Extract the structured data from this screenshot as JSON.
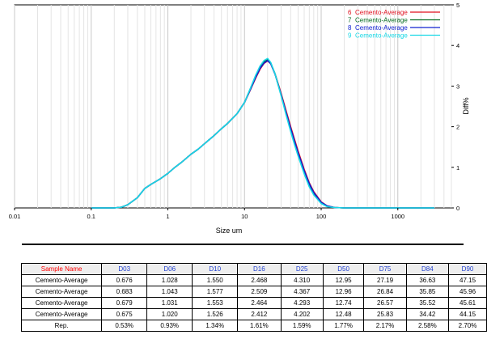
{
  "chart_data": {
    "type": "line",
    "xlabel": "Size um",
    "ylabel": "Diff%",
    "x_scale": "log",
    "xlim": [
      0.01,
      5000
    ],
    "ylim": [
      0,
      5
    ],
    "x_ticks": [
      "0.01",
      "0.1",
      "1",
      "10",
      "100",
      "1000"
    ],
    "x_tick_values": [
      0.01,
      0.1,
      1,
      10,
      100,
      1000
    ],
    "y_ticks": [
      "0",
      "1",
      "2",
      "3",
      "4",
      "5"
    ],
    "y_tick_values": [
      0,
      1,
      2,
      3,
      4,
      5
    ],
    "grid": true,
    "legend_position": "top-right",
    "x": [
      0.1,
      0.2,
      0.25,
      0.3,
      0.4,
      0.5,
      0.6,
      0.8,
      1.0,
      1.2,
      1.5,
      2,
      2.5,
      3,
      4,
      5,
      6,
      8,
      10,
      12,
      14,
      16,
      18,
      20,
      22,
      25,
      30,
      35,
      40,
      45,
      50,
      60,
      70,
      80,
      100,
      120,
      150,
      200,
      300,
      3000
    ],
    "series": [
      {
        "name": "6",
        "label": "Cemento-Average",
        "color": "#e0101f",
        "values": [
          0,
          0,
          0.02,
          0.08,
          0.25,
          0.48,
          0.58,
          0.72,
          0.85,
          0.98,
          1.12,
          1.32,
          1.45,
          1.58,
          1.78,
          1.95,
          2.08,
          2.32,
          2.6,
          2.92,
          3.2,
          3.42,
          3.56,
          3.62,
          3.55,
          3.3,
          2.82,
          2.38,
          2.0,
          1.68,
          1.4,
          0.95,
          0.62,
          0.4,
          0.15,
          0.05,
          0.01,
          0,
          0,
          0
        ]
      },
      {
        "name": "7",
        "label": "Cemento-Average",
        "color": "#0a6e25",
        "values": [
          0,
          0,
          0.02,
          0.08,
          0.25,
          0.48,
          0.58,
          0.72,
          0.85,
          0.98,
          1.12,
          1.32,
          1.45,
          1.58,
          1.78,
          1.95,
          2.08,
          2.32,
          2.6,
          2.95,
          3.25,
          3.47,
          3.6,
          3.66,
          3.57,
          3.3,
          2.78,
          2.32,
          1.93,
          1.6,
          1.32,
          0.88,
          0.56,
          0.35,
          0.12,
          0.04,
          0.01,
          0,
          0,
          0
        ]
      },
      {
        "name": "8",
        "label": "Cemento-Average",
        "color": "#1020d0",
        "values": [
          0,
          0,
          0.02,
          0.08,
          0.25,
          0.48,
          0.58,
          0.72,
          0.85,
          0.98,
          1.12,
          1.32,
          1.45,
          1.58,
          1.78,
          1.95,
          2.08,
          2.32,
          2.6,
          2.93,
          3.22,
          3.44,
          3.57,
          3.63,
          3.55,
          3.29,
          2.79,
          2.34,
          1.96,
          1.64,
          1.36,
          0.92,
          0.6,
          0.38,
          0.14,
          0.05,
          0.01,
          0,
          0,
          0
        ]
      },
      {
        "name": "9",
        "label": "Cemento-Average",
        "color": "#18d8e6",
        "values": [
          0,
          0,
          0.02,
          0.08,
          0.25,
          0.48,
          0.58,
          0.72,
          0.85,
          0.98,
          1.12,
          1.32,
          1.45,
          1.58,
          1.78,
          1.95,
          2.08,
          2.32,
          2.6,
          2.96,
          3.27,
          3.5,
          3.63,
          3.68,
          3.58,
          3.3,
          2.76,
          2.28,
          1.88,
          1.55,
          1.28,
          0.84,
          0.52,
          0.32,
          0.11,
          0.03,
          0.01,
          0,
          0,
          0
        ]
      }
    ]
  },
  "table": {
    "corner": "Sample Name",
    "headers": [
      "D03",
      "D06",
      "D10",
      "D16",
      "D25",
      "D50",
      "D75",
      "D84",
      "D90"
    ],
    "rows": [
      {
        "name": "Cemento-Average",
        "values": [
          "0.676",
          "1.028",
          "1.550",
          "2.468",
          "4.310",
          "12.95",
          "27.19",
          "36.63",
          "47.15"
        ]
      },
      {
        "name": "Cemento-Average",
        "values": [
          "0.683",
          "1.043",
          "1.577",
          "2.509",
          "4.367",
          "12.96",
          "26.84",
          "35.85",
          "45.96"
        ]
      },
      {
        "name": "Cemento-Average",
        "values": [
          "0.679",
          "1.031",
          "1.553",
          "2.464",
          "4.293",
          "12.74",
          "26.57",
          "35.52",
          "45.61"
        ]
      },
      {
        "name": "Cemento-Average",
        "values": [
          "0.675",
          "1.020",
          "1.526",
          "2.412",
          "4.202",
          "12.48",
          "25.83",
          "34.42",
          "44.15"
        ]
      },
      {
        "name": "Rep.",
        "values": [
          "0.53%",
          "0.93%",
          "1.34%",
          "1.61%",
          "1.59%",
          "1.77%",
          "2.17%",
          "2.58%",
          "2.70%"
        ]
      }
    ]
  }
}
